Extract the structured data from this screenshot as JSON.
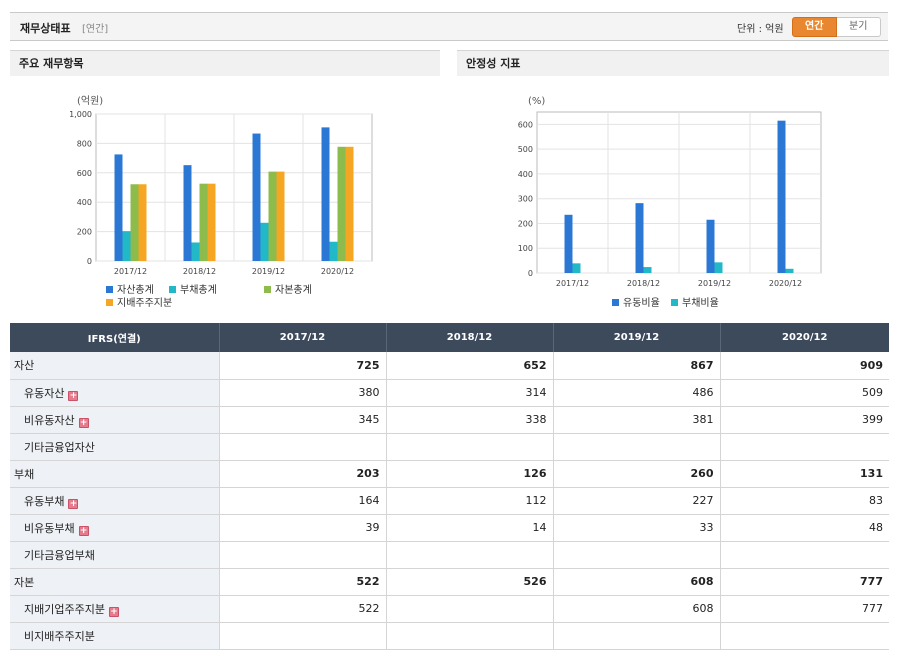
{
  "header": {
    "title": "재무상태표",
    "subtitle": "[연간]",
    "unit_label": "단위 : 억원",
    "toggle": {
      "annual": "연간",
      "quarter": "분기",
      "active": "annual",
      "accent": "#e8872f"
    }
  },
  "left_panel": {
    "title": "주요 재무항목"
  },
  "right_panel": {
    "title": "안정성 지표"
  },
  "chart_data": [
    {
      "type": "bar",
      "ylabel": "(억원)",
      "ylim": [
        0,
        1000
      ],
      "yticks": [
        "0",
        "200",
        "400",
        "600",
        "800",
        "1,000"
      ],
      "categories": [
        "2017/12",
        "2018/12",
        "2019/12",
        "2020/12"
      ],
      "series": [
        {
          "name": "자산총계",
          "color": "#2b78d4",
          "values": [
            725,
            652,
            867,
            909
          ]
        },
        {
          "name": "부채총계",
          "color": "#22b8c8",
          "values": [
            203,
            126,
            260,
            131
          ]
        },
        {
          "name": "자본총계",
          "color": "#8dbb4c",
          "values": [
            522,
            526,
            608,
            777
          ]
        },
        {
          "name": "지배주주지분",
          "color": "#f5a623",
          "values": [
            522,
            526,
            608,
            777
          ]
        }
      ],
      "grid": true,
      "legend": "bottom"
    },
    {
      "type": "bar",
      "ylabel": "(%)",
      "ylim": [
        0,
        650
      ],
      "yticks": [
        "0",
        "100",
        "200",
        "300",
        "400",
        "500",
        "600"
      ],
      "categories": [
        "2017/12",
        "2018/12",
        "2019/12",
        "2020/12"
      ],
      "series": [
        {
          "name": "유동비율",
          "color": "#2b78d4",
          "values": [
            235,
            282,
            215,
            615
          ]
        },
        {
          "name": "부채비율",
          "color": "#22b8c8",
          "values": [
            39,
            24,
            43,
            17
          ]
        }
      ],
      "grid": true,
      "legend": "bottom"
    }
  ],
  "table": {
    "header": [
      "IFRS(연결)",
      "2017/12",
      "2018/12",
      "2019/12",
      "2020/12"
    ],
    "rows": [
      {
        "label": "자산",
        "major": true,
        "expand": false,
        "values": [
          "725",
          "652",
          "867",
          "909"
        ]
      },
      {
        "label": "유동자산",
        "major": false,
        "expand": true,
        "values": [
          "380",
          "314",
          "486",
          "509"
        ]
      },
      {
        "label": "비유동자산",
        "major": false,
        "expand": true,
        "values": [
          "345",
          "338",
          "381",
          "399"
        ]
      },
      {
        "label": "기타금융업자산",
        "major": false,
        "expand": false,
        "values": [
          "",
          "",
          "",
          ""
        ]
      },
      {
        "label": "부채",
        "major": true,
        "expand": false,
        "values": [
          "203",
          "126",
          "260",
          "131"
        ]
      },
      {
        "label": "유동부채",
        "major": false,
        "expand": true,
        "values": [
          "164",
          "112",
          "227",
          "83"
        ]
      },
      {
        "label": "비유동부채",
        "major": false,
        "expand": true,
        "values": [
          "39",
          "14",
          "33",
          "48"
        ]
      },
      {
        "label": "기타금융업부채",
        "major": false,
        "expand": false,
        "values": [
          "",
          "",
          "",
          ""
        ]
      },
      {
        "label": "자본",
        "major": true,
        "expand": false,
        "values": [
          "522",
          "526",
          "608",
          "777"
        ]
      },
      {
        "label": "지배기업주주지분",
        "major": false,
        "expand": true,
        "values": [
          "522",
          "",
          "608",
          "777"
        ]
      },
      {
        "label": "비지배주주지분",
        "major": false,
        "expand": false,
        "values": [
          "",
          "",
          "",
          ""
        ]
      }
    ]
  }
}
